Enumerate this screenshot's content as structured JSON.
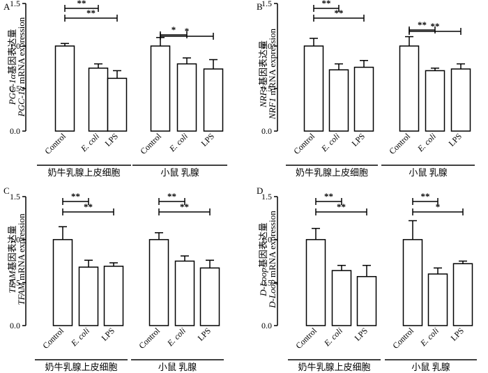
{
  "chart_data": [
    {
      "type": "bar",
      "panel": "A",
      "ylabel_cn_italic": "PGC-1α",
      "ylabel_cn": "基因表达量",
      "ylabel_en_italic": "PGC-1α",
      "ylabel_en": " mRNA expression",
      "ylim": [
        0,
        1.5
      ],
      "yticks": [
        "0.0",
        "0.5",
        "1.0",
        "1.5"
      ],
      "categories": [
        "Control",
        "E. coli",
        "LPS",
        "Control",
        "E. coli",
        "LPS"
      ],
      "groups": [
        {
          "name": "奶牛乳腺上皮细胞"
        },
        {
          "name": "小鼠 乳腺"
        }
      ],
      "values": [
        1.0,
        0.74,
        0.62,
        1.0,
        0.79,
        0.73
      ],
      "errors": [
        0.03,
        0.05,
        0.09,
        0.1,
        0.07,
        0.11
      ],
      "significance": [
        {
          "from": 0,
          "to": 1,
          "label": "**"
        },
        {
          "from": 0,
          "to": 2,
          "label": "**"
        },
        {
          "from": 3,
          "to": 4,
          "label": "*"
        },
        {
          "from": 3,
          "to": 5,
          "label": "*"
        }
      ]
    },
    {
      "type": "bar",
      "panel": "B",
      "ylabel_cn_italic": "NRF1",
      "ylabel_cn": "基因表达量",
      "ylabel_en_italic": "NRF1",
      "ylabel_en": " mRNA expression",
      "ylim": [
        0,
        1.5
      ],
      "yticks": [
        "0.0",
        "0.5",
        "1.0",
        "1.5"
      ],
      "categories": [
        "Control",
        "E. coli",
        "LPS",
        "Control",
        "E. coli",
        "LPS"
      ],
      "groups": [
        {
          "name": "奶牛乳腺上皮细胞"
        },
        {
          "name": "小鼠 乳腺"
        }
      ],
      "values": [
        1.0,
        0.72,
        0.75,
        1.0,
        0.71,
        0.73
      ],
      "errors": [
        0.09,
        0.07,
        0.08,
        0.11,
        0.03,
        0.06
      ],
      "significance": [
        {
          "from": 0,
          "to": 1,
          "label": "**"
        },
        {
          "from": 0,
          "to": 2,
          "label": "**"
        },
        {
          "from": 3,
          "to": 4,
          "label": "**"
        },
        {
          "from": 3,
          "to": 5,
          "label": "**"
        }
      ]
    },
    {
      "type": "bar",
      "panel": "C",
      "ylabel_cn_italic": "TFAM",
      "ylabel_cn": "基因表达量",
      "ylabel_en_italic": "TFAM",
      "ylabel_en": " mRNA expression",
      "ylim": [
        0,
        1.5
      ],
      "yticks": [
        "0.0",
        "0.5",
        "1.0",
        "1.5"
      ],
      "categories": [
        "Control",
        "E. coli",
        "LPS",
        "Control",
        "E. coli",
        "LPS"
      ],
      "groups": [
        {
          "name": "奶牛乳腺上皮细胞"
        },
        {
          "name": "小鼠 乳腺"
        }
      ],
      "values": [
        1.0,
        0.68,
        0.69,
        1.0,
        0.75,
        0.67
      ],
      "errors": [
        0.15,
        0.08,
        0.04,
        0.08,
        0.06,
        0.09
      ],
      "significance": [
        {
          "from": 0,
          "to": 1,
          "label": "**"
        },
        {
          "from": 0,
          "to": 2,
          "label": "**"
        },
        {
          "from": 3,
          "to": 4,
          "label": "**"
        },
        {
          "from": 3,
          "to": 5,
          "label": "**"
        }
      ]
    },
    {
      "type": "bar",
      "panel": "D",
      "ylabel_cn_italic": "D-Loop",
      "ylabel_cn": "基因表达量",
      "ylabel_en_italic": "D-Loop",
      "ylabel_en": " mRNA expression",
      "ylim": [
        0,
        1.5
      ],
      "yticks": [
        "0.0",
        "0.5",
        "1.0",
        "1.5"
      ],
      "categories": [
        "Control",
        "E. coli",
        "LPS",
        "Control",
        "E. coli",
        "LPS"
      ],
      "groups": [
        {
          "name": "奶牛乳腺上皮细胞"
        },
        {
          "name": "小鼠 乳腺"
        }
      ],
      "values": [
        1.0,
        0.64,
        0.57,
        1.0,
        0.6,
        0.72
      ],
      "errors": [
        0.13,
        0.06,
        0.13,
        0.22,
        0.07,
        0.03
      ],
      "significance": [
        {
          "from": 0,
          "to": 1,
          "label": "**"
        },
        {
          "from": 0,
          "to": 2,
          "label": "**"
        },
        {
          "from": 3,
          "to": 4,
          "label": "**"
        },
        {
          "from": 3,
          "to": 5,
          "label": "*"
        }
      ]
    }
  ]
}
